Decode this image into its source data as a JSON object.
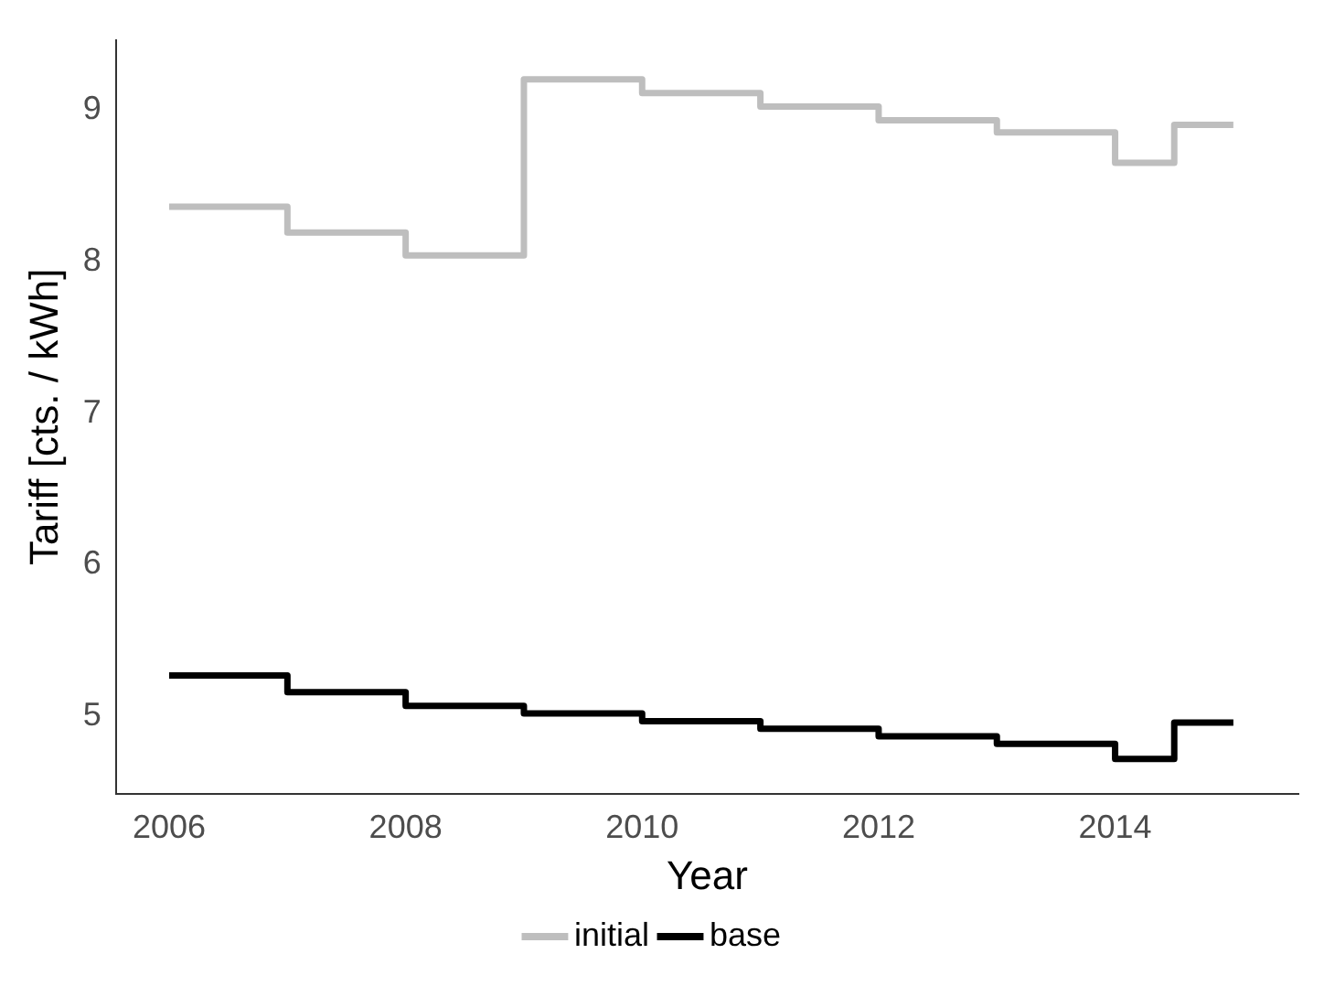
{
  "chart_data": {
    "type": "step",
    "xlabel": "Year",
    "ylabel": "Tariff [cts. / kWh]",
    "x": [
      2006,
      2007,
      2008,
      2009,
      2010,
      2011,
      2012,
      2013,
      2014,
      2014.5,
      2015
    ],
    "series": [
      {
        "name": "initial",
        "color": "#bebebe",
        "values": [
          8.36,
          8.19,
          8.04,
          9.2,
          9.11,
          9.02,
          8.93,
          8.85,
          8.65,
          8.9,
          8.9
        ]
      },
      {
        "name": "base",
        "color": "#000000",
        "values": [
          5.27,
          5.16,
          5.07,
          5.02,
          4.97,
          4.92,
          4.87,
          4.82,
          4.72,
          4.96,
          4.96
        ]
      }
    ],
    "xlim": [
      2005.55,
      2015.55
    ],
    "xticks": [
      2006,
      2008,
      2010,
      2012,
      2014
    ],
    "ylim": [
      4.49,
      9.46
    ],
    "yticks": [
      5,
      6,
      7,
      8,
      9
    ],
    "grid": false,
    "legend": "bottom",
    "marker": "none"
  }
}
